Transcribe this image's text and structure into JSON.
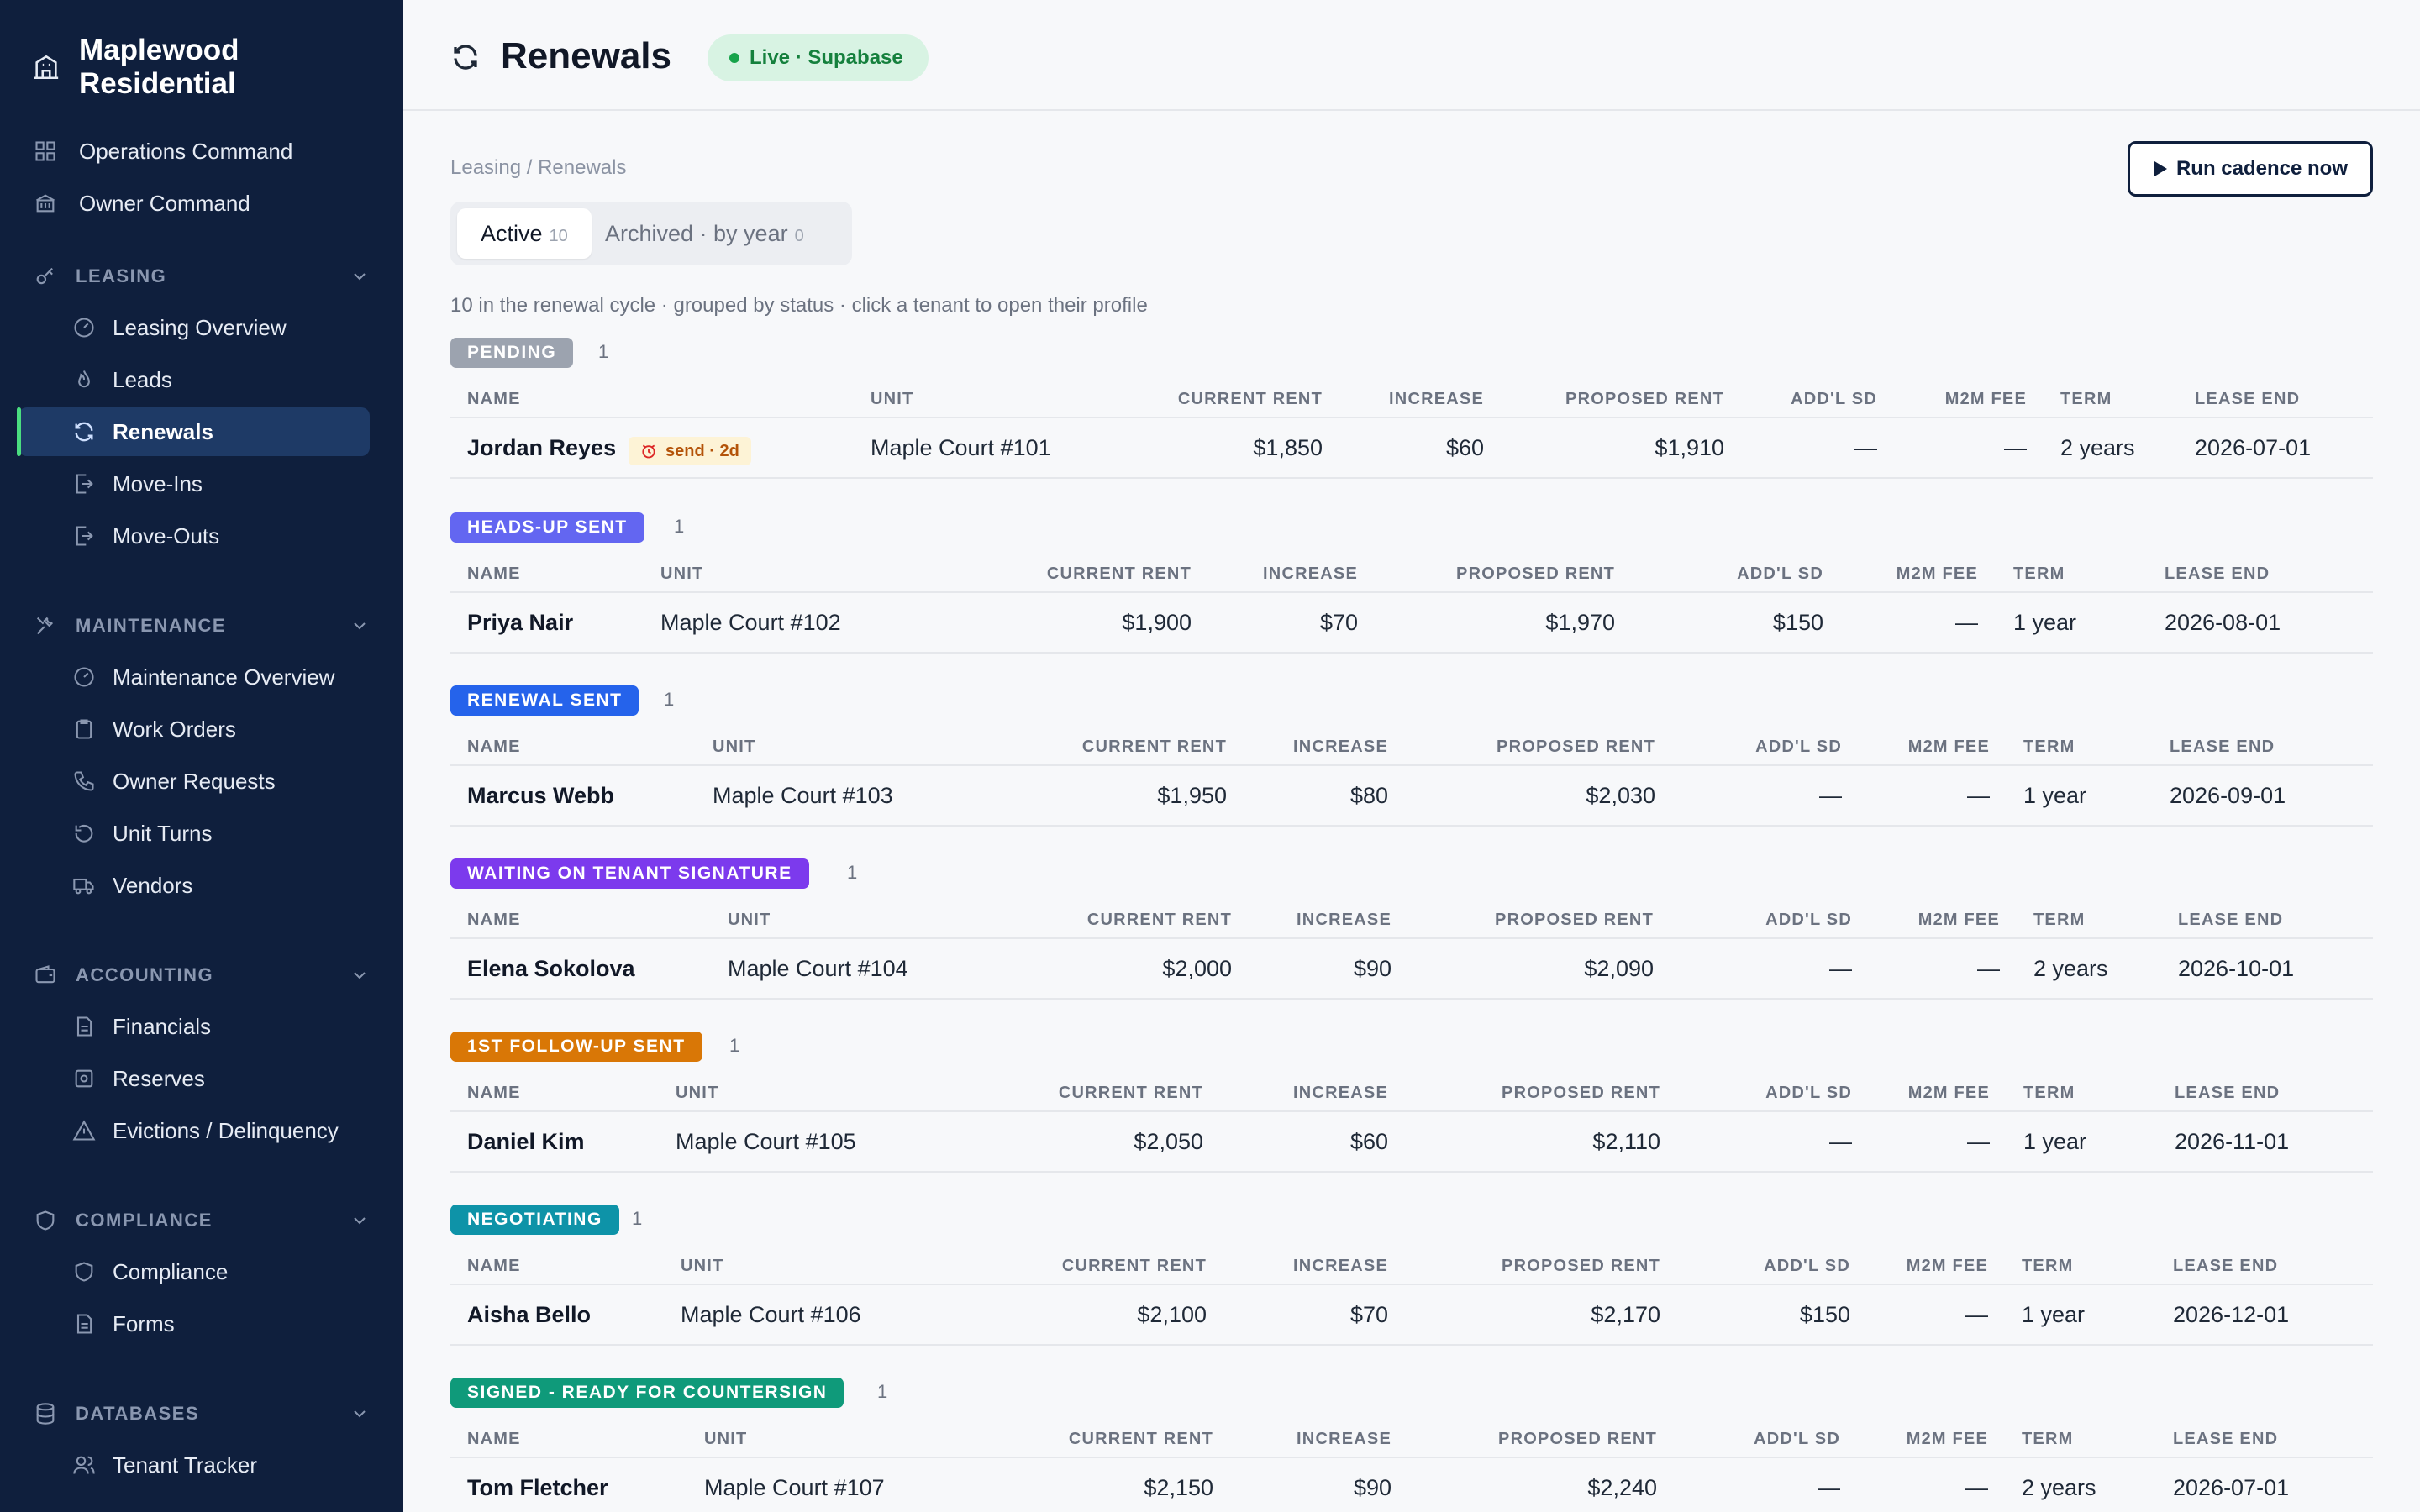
{
  "brand": {
    "name": "Maplewood Residential",
    "logo_icon": "building-icon"
  },
  "sidebar": {
    "top_items": [
      {
        "label": "Operations Command",
        "icon": "grid-icon"
      },
      {
        "label": "Owner Command",
        "icon": "bank-icon"
      }
    ],
    "sections": [
      {
        "title": "LEASING",
        "icon": "key-icon",
        "items": [
          {
            "label": "Leasing Overview",
            "icon": "gauge-icon"
          },
          {
            "label": "Leads",
            "icon": "flame-icon"
          },
          {
            "label": "Renewals",
            "icon": "refresh-icon",
            "active": true
          },
          {
            "label": "Move-Ins",
            "icon": "door-in-icon"
          },
          {
            "label": "Move-Outs",
            "icon": "door-out-icon"
          }
        ]
      },
      {
        "title": "MAINTENANCE",
        "icon": "tools-icon",
        "items": [
          {
            "label": "Maintenance Overview",
            "icon": "gauge-icon"
          },
          {
            "label": "Work Orders",
            "icon": "clipboard-icon"
          },
          {
            "label": "Owner Requests",
            "icon": "phone-icon"
          },
          {
            "label": "Unit Turns",
            "icon": "rotate-icon"
          },
          {
            "label": "Vendors",
            "icon": "truck-icon"
          }
        ]
      },
      {
        "title": "ACCOUNTING",
        "icon": "wallet-icon",
        "items": [
          {
            "label": "Financials",
            "icon": "document-icon"
          },
          {
            "label": "Reserves",
            "icon": "safe-icon"
          },
          {
            "label": "Evictions / Delinquency",
            "icon": "warning-icon"
          }
        ]
      },
      {
        "title": "COMPLIANCE",
        "icon": "shield-icon",
        "items": [
          {
            "label": "Compliance",
            "icon": "shield-icon"
          },
          {
            "label": "Forms",
            "icon": "document-icon"
          }
        ]
      },
      {
        "title": "DATABASES",
        "icon": "database-icon",
        "items": [
          {
            "label": "Tenant Tracker",
            "icon": "users-icon"
          }
        ]
      }
    ]
  },
  "header": {
    "title": "Renewals",
    "status_pill": "Live · Supabase"
  },
  "main": {
    "breadcrumb": "Leasing / Renewals",
    "run_button": "Run cadence now",
    "tabs": [
      {
        "label": "Active",
        "count": "10"
      },
      {
        "label": "Archived · by year",
        "count": "0"
      }
    ],
    "summary": "10 in the renewal cycle · grouped by status · click a tenant to open their profile",
    "columns": [
      "NAME",
      "UNIT",
      "CURRENT RENT",
      "INCREASE",
      "PROPOSED RENT",
      "ADD'L SD",
      "M2M FEE",
      "TERM",
      "LEASE END"
    ],
    "groups": [
      {
        "status": "PENDING",
        "color": "#9ca3af",
        "count": "1",
        "row": {
          "name": "Jordan Reyes",
          "chip": "send · 2d",
          "unit": "Maple Court #101",
          "current_rent": "$1,850",
          "increase": "$60",
          "proposed_rent": "$1,910",
          "addl_sd": "—",
          "m2m_fee": "—",
          "term": "2 years",
          "lease_end": "2026-07-01"
        }
      },
      {
        "status": "HEADS-UP SENT",
        "color": "#6366f1",
        "count": "1",
        "row": {
          "name": "Priya Nair",
          "unit": "Maple Court #102",
          "current_rent": "$1,900",
          "increase": "$70",
          "proposed_rent": "$1,970",
          "addl_sd": "$150",
          "m2m_fee": "—",
          "term": "1 year",
          "lease_end": "2026-08-01"
        }
      },
      {
        "status": "RENEWAL SENT",
        "color": "#2563eb",
        "count": "1",
        "row": {
          "name": "Marcus Webb",
          "unit": "Maple Court #103",
          "current_rent": "$1,950",
          "increase": "$80",
          "proposed_rent": "$2,030",
          "addl_sd": "—",
          "m2m_fee": "—",
          "term": "1 year",
          "lease_end": "2026-09-01"
        }
      },
      {
        "status": "WAITING ON TENANT SIGNATURE",
        "color": "#7c3aed",
        "count": "1",
        "row": {
          "name": "Elena Sokolova",
          "unit": "Maple Court #104",
          "current_rent": "$2,000",
          "increase": "$90",
          "proposed_rent": "$2,090",
          "addl_sd": "—",
          "m2m_fee": "—",
          "term": "2 years",
          "lease_end": "2026-10-01"
        }
      },
      {
        "status": "1ST FOLLOW-UP SENT",
        "color": "#d97706",
        "count": "1",
        "row": {
          "name": "Daniel Kim",
          "unit": "Maple Court #105",
          "current_rent": "$2,050",
          "increase": "$60",
          "proposed_rent": "$2,110",
          "addl_sd": "—",
          "m2m_fee": "—",
          "term": "1 year",
          "lease_end": "2026-11-01"
        }
      },
      {
        "status": "NEGOTIATING",
        "color": "#0e93a8",
        "count": "1",
        "row": {
          "name": "Aisha Bello",
          "unit": "Maple Court #106",
          "current_rent": "$2,100",
          "increase": "$70",
          "proposed_rent": "$2,170",
          "addl_sd": "$150",
          "m2m_fee": "—",
          "term": "1 year",
          "lease_end": "2026-12-01"
        }
      },
      {
        "status": "SIGNED - READY FOR COUNTERSIGN",
        "color": "#0f9a7a",
        "count": "1",
        "row": {
          "name": "Tom Fletcher",
          "unit": "Maple Court #107",
          "current_rent": "$2,150",
          "increase": "$90",
          "proposed_rent": "$2,240",
          "addl_sd": "—",
          "m2m_fee": "—",
          "term": "2 years",
          "lease_end": "2026-07-01"
        }
      }
    ]
  }
}
